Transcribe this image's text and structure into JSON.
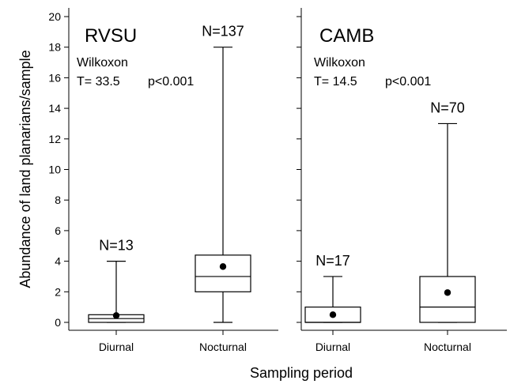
{
  "chart_data": {
    "type": "box",
    "ylabel": "Abundance of land planarians/sample",
    "xlabel": "Sampling period",
    "ylim": [
      0,
      20
    ],
    "yticks": [
      "0",
      "2",
      "4",
      "6",
      "8",
      "10",
      "12",
      "14",
      "16",
      "18",
      "20"
    ],
    "ytick_values": [
      0,
      2,
      4,
      6,
      8,
      10,
      12,
      14,
      16,
      18,
      20
    ],
    "panels": [
      {
        "title": "RVSU",
        "test_name": "Wilkoxon",
        "statistic": "T= 33.5",
        "p_value": "p<0.001",
        "categories": [
          "Diurnal",
          "Nocturnal"
        ],
        "boxes": [
          {
            "category": "Diurnal",
            "n_label": "N=13",
            "min": 0,
            "q1": 0,
            "median": 0.25,
            "q3": 0.5,
            "max": 4,
            "mean": 0.45
          },
          {
            "category": "Nocturnal",
            "n_label": "N=137",
            "min": 0,
            "q1": 2,
            "median": 3,
            "q3": 4.4,
            "max": 18,
            "mean": 3.65
          }
        ]
      },
      {
        "title": "CAMB",
        "test_name": "Wilkoxon",
        "statistic": "T= 14.5",
        "p_value": "p<0.001",
        "categories": [
          "Diurnal",
          "Nocturnal"
        ],
        "boxes": [
          {
            "category": "Diurnal",
            "n_label": "N=17",
            "min": 0,
            "q1": 0,
            "median": 0,
            "q3": 1,
            "max": 3,
            "mean": 0.5
          },
          {
            "category": "Nocturnal",
            "n_label": "N=70",
            "min": 0,
            "q1": 0,
            "median": 1,
            "q3": 3,
            "max": 13,
            "mean": 1.95
          }
        ]
      }
    ]
  }
}
